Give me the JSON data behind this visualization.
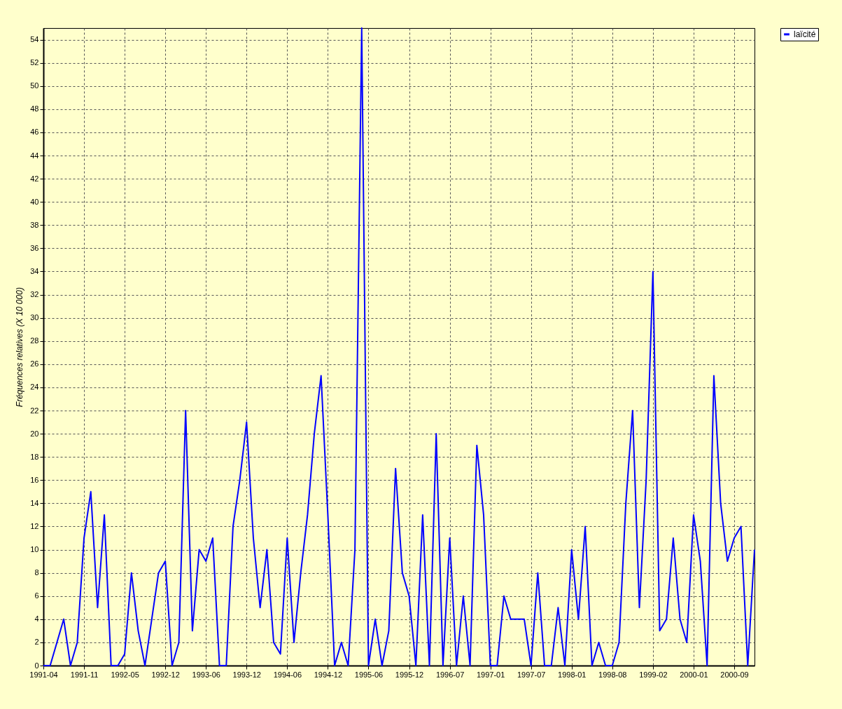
{
  "chart_data": {
    "type": "line",
    "ylabel": "Fréquences relatives (X 10 000)",
    "categories": [
      "1991-04",
      null,
      null,
      null,
      null,
      null,
      "1991-11",
      null,
      null,
      null,
      null,
      null,
      "1992-05",
      null,
      null,
      null,
      null,
      null,
      "1992-12",
      null,
      null,
      null,
      null,
      null,
      "1993-06",
      null,
      null,
      null,
      null,
      null,
      "1993-12",
      null,
      null,
      null,
      null,
      null,
      "1994-06",
      null,
      null,
      null,
      null,
      null,
      "1994-12",
      null,
      null,
      null,
      null,
      null,
      "1995-06",
      null,
      null,
      null,
      null,
      null,
      "1995-12",
      null,
      null,
      null,
      null,
      null,
      "1996-07",
      null,
      null,
      null,
      null,
      null,
      "1997-01",
      null,
      null,
      null,
      null,
      null,
      "1997-07",
      null,
      null,
      null,
      null,
      null,
      "1998-01",
      null,
      null,
      null,
      null,
      null,
      "1998-08",
      null,
      null,
      null,
      null,
      null,
      "1999-02",
      null,
      null,
      null,
      null,
      null,
      "2000-01",
      null,
      null,
      null,
      null,
      null,
      "2000-09",
      null,
      null,
      null
    ],
    "series": [
      {
        "name": "laïcité",
        "color": "#0000ff",
        "values": [
          0,
          0,
          2,
          4,
          0,
          2,
          11,
          15,
          5,
          13,
          0,
          0,
          1,
          8,
          3,
          0,
          4,
          8,
          9,
          0,
          2,
          22,
          3,
          10,
          9,
          11,
          0,
          0,
          12,
          16,
          21,
          11,
          5,
          10,
          2,
          1,
          11,
          2,
          8,
          13,
          20,
          25,
          13,
          0,
          2,
          0,
          10,
          55,
          0,
          4,
          0,
          3,
          17,
          8,
          6,
          0,
          13,
          0,
          20,
          0,
          11,
          0,
          6,
          0,
          19,
          13,
          0,
          0,
          6,
          4,
          4,
          4,
          0,
          8,
          0,
          0,
          5,
          0,
          10,
          4,
          12,
          0,
          2,
          0,
          0,
          2,
          14,
          22,
          5,
          16,
          34,
          3,
          4,
          11,
          4,
          2,
          13,
          9,
          0,
          25,
          14,
          9,
          11,
          12,
          0,
          10
        ]
      }
    ],
    "ylim": [
      0,
      55
    ],
    "yticks": [
      0,
      2,
      4,
      6,
      8,
      10,
      12,
      14,
      16,
      18,
      20,
      22,
      24,
      26,
      28,
      30,
      32,
      34,
      36,
      38,
      40,
      42,
      44,
      46,
      48,
      50,
      52,
      54
    ],
    "grid": true,
    "legend": "top right",
    "marker": "none",
    "line_style": "solid"
  }
}
